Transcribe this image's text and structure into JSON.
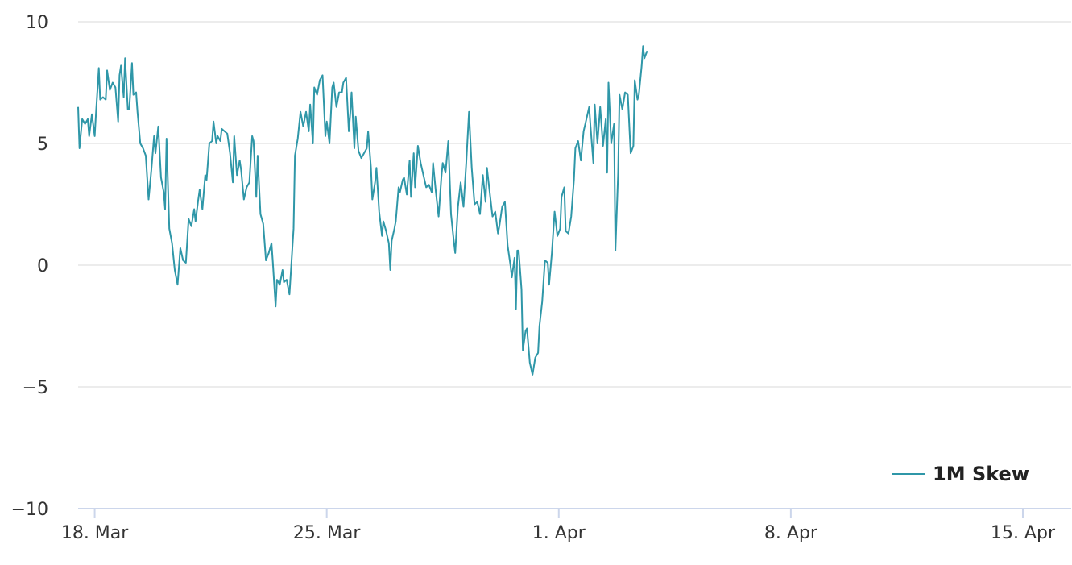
{
  "chart_data": {
    "type": "line",
    "title": "",
    "xlabel": "",
    "ylabel": "",
    "ylim": [
      -10,
      10
    ],
    "xlim": [
      "2024-03-17T12:00",
      "2024-04-16T04:00"
    ],
    "y_ticks": [
      -10,
      -5,
      0,
      5,
      10
    ],
    "y_tick_labels": [
      "−10",
      "−5",
      "0",
      "5",
      "10"
    ],
    "x_ticks": [
      {
        "date": "2024-03-18",
        "label": "18. Mar"
      },
      {
        "date": "2024-03-25",
        "label": "25. Mar"
      },
      {
        "date": "2024-04-01",
        "label": "1. Apr"
      },
      {
        "date": "2024-04-08",
        "label": "8. Apr"
      },
      {
        "date": "2024-04-15",
        "label": "15. Apr"
      }
    ],
    "grid": "horizontal",
    "legend_position": "bottom-right",
    "colors": {
      "series": "#2f97a8",
      "grid": "#e6e6e6",
      "axis": "#ccd6eb"
    },
    "series": [
      {
        "name": "1M Skew",
        "points": [
          [
            "2024-03-17T12:00",
            6.5
          ],
          [
            "2024-03-17T13:00",
            4.8
          ],
          [
            "2024-03-17T15:00",
            6.0
          ],
          [
            "2024-03-17T17:00",
            5.8
          ],
          [
            "2024-03-17T19:00",
            6.0
          ],
          [
            "2024-03-17T20:00",
            5.3
          ],
          [
            "2024-03-17T22:00",
            6.2
          ],
          [
            "2024-03-18T00:00",
            5.3
          ],
          [
            "2024-03-18T01:00",
            6.3
          ],
          [
            "2024-03-18T03:00",
            8.1
          ],
          [
            "2024-03-18T04:00",
            6.8
          ],
          [
            "2024-03-18T06:00",
            6.9
          ],
          [
            "2024-03-18T08:00",
            6.8
          ],
          [
            "2024-03-18T09:00",
            8.0
          ],
          [
            "2024-03-18T11:00",
            7.2
          ],
          [
            "2024-03-18T13:00",
            7.5
          ],
          [
            "2024-03-18T15:00",
            7.3
          ],
          [
            "2024-03-18T17:00",
            5.9
          ],
          [
            "2024-03-18T18:00",
            7.8
          ],
          [
            "2024-03-18T19:00",
            8.2
          ],
          [
            "2024-03-18T21:00",
            6.9
          ],
          [
            "2024-03-18T22:00",
            8.5
          ],
          [
            "2024-03-19T00:00",
            6.4
          ],
          [
            "2024-03-19T01:00",
            6.4
          ],
          [
            "2024-03-19T03:00",
            8.3
          ],
          [
            "2024-03-19T04:00",
            7.0
          ],
          [
            "2024-03-19T06:00",
            7.1
          ],
          [
            "2024-03-19T07:00",
            6.3
          ],
          [
            "2024-03-19T09:00",
            5.0
          ],
          [
            "2024-03-19T11:00",
            4.8
          ],
          [
            "2024-03-19T13:00",
            4.5
          ],
          [
            "2024-03-19T15:00",
            2.7
          ],
          [
            "2024-03-19T17:00",
            3.9
          ],
          [
            "2024-03-19T19:00",
            5.3
          ],
          [
            "2024-03-19T20:00",
            4.6
          ],
          [
            "2024-03-19T22:00",
            5.7
          ],
          [
            "2024-03-20T00:00",
            3.6
          ],
          [
            "2024-03-20T02:00",
            3.0
          ],
          [
            "2024-03-20T03:00",
            2.3
          ],
          [
            "2024-03-20T04:00",
            5.2
          ],
          [
            "2024-03-20T06:00",
            1.5
          ],
          [
            "2024-03-20T08:00",
            0.9
          ],
          [
            "2024-03-20T10:00",
            -0.2
          ],
          [
            "2024-03-20T12:00",
            -0.8
          ],
          [
            "2024-03-20T14:00",
            0.7
          ],
          [
            "2024-03-20T16:00",
            0.2
          ],
          [
            "2024-03-20T18:00",
            0.1
          ],
          [
            "2024-03-20T20:00",
            1.9
          ],
          [
            "2024-03-20T22:00",
            1.6
          ],
          [
            "2024-03-21T00:00",
            2.3
          ],
          [
            "2024-03-21T01:00",
            1.8
          ],
          [
            "2024-03-21T03:00",
            2.7
          ],
          [
            "2024-03-21T04:00",
            3.1
          ],
          [
            "2024-03-21T06:00",
            2.3
          ],
          [
            "2024-03-21T08:00",
            3.7
          ],
          [
            "2024-03-21T09:00",
            3.5
          ],
          [
            "2024-03-21T11:00",
            5.0
          ],
          [
            "2024-03-21T13:00",
            5.1
          ],
          [
            "2024-03-21T14:00",
            5.9
          ],
          [
            "2024-03-21T16:00",
            5.0
          ],
          [
            "2024-03-21T17:00",
            5.3
          ],
          [
            "2024-03-21T19:00",
            5.1
          ],
          [
            "2024-03-21T20:00",
            5.6
          ],
          [
            "2024-03-21T22:00",
            5.5
          ],
          [
            "2024-03-22T00:00",
            5.4
          ],
          [
            "2024-03-22T02:00",
            4.6
          ],
          [
            "2024-03-22T04:00",
            3.4
          ],
          [
            "2024-03-22T05:00",
            5.3
          ],
          [
            "2024-03-22T07:00",
            3.7
          ],
          [
            "2024-03-22T09:00",
            4.3
          ],
          [
            "2024-03-22T10:00",
            3.9
          ],
          [
            "2024-03-22T12:00",
            2.7
          ],
          [
            "2024-03-22T14:00",
            3.2
          ],
          [
            "2024-03-22T16:00",
            3.4
          ],
          [
            "2024-03-22T18:00",
            5.3
          ],
          [
            "2024-03-22T19:00",
            5.1
          ],
          [
            "2024-03-22T21:00",
            2.8
          ],
          [
            "2024-03-22T22:00",
            4.5
          ],
          [
            "2024-03-23T00:00",
            2.1
          ],
          [
            "2024-03-23T02:00",
            1.7
          ],
          [
            "2024-03-23T04:00",
            0.2
          ],
          [
            "2024-03-23T06:00",
            0.5
          ],
          [
            "2024-03-23T08:00",
            0.9
          ],
          [
            "2024-03-23T09:00",
            0.1
          ],
          [
            "2024-03-23T11:00",
            -1.7
          ],
          [
            "2024-03-23T12:00",
            -0.6
          ],
          [
            "2024-03-23T14:00",
            -0.8
          ],
          [
            "2024-03-23T16:00",
            -0.2
          ],
          [
            "2024-03-23T17:00",
            -0.7
          ],
          [
            "2024-03-23T19:00",
            -0.6
          ],
          [
            "2024-03-23T21:00",
            -1.2
          ],
          [
            "2024-03-24T00:00",
            1.5
          ],
          [
            "2024-03-24T01:00",
            4.5
          ],
          [
            "2024-03-24T03:00",
            5.2
          ],
          [
            "2024-03-24T05:00",
            6.3
          ],
          [
            "2024-03-24T07:00",
            5.7
          ],
          [
            "2024-03-24T09:00",
            6.3
          ],
          [
            "2024-03-24T11:00",
            5.5
          ],
          [
            "2024-03-24T12:00",
            6.6
          ],
          [
            "2024-03-24T14:00",
            5.0
          ],
          [
            "2024-03-24T15:00",
            7.3
          ],
          [
            "2024-03-24T17:00",
            7.0
          ],
          [
            "2024-03-24T19:00",
            7.6
          ],
          [
            "2024-03-24T21:00",
            7.8
          ],
          [
            "2024-03-24T23:00",
            5.3
          ],
          [
            "2024-03-25T00:00",
            5.9
          ],
          [
            "2024-03-25T02:00",
            5.0
          ],
          [
            "2024-03-25T04:00",
            7.3
          ],
          [
            "2024-03-25T05:00",
            7.5
          ],
          [
            "2024-03-25T07:00",
            6.5
          ],
          [
            "2024-03-25T09:00",
            7.1
          ],
          [
            "2024-03-25T11:00",
            7.1
          ],
          [
            "2024-03-25T12:00",
            7.5
          ],
          [
            "2024-03-25T14:00",
            7.7
          ],
          [
            "2024-03-25T16:00",
            5.5
          ],
          [
            "2024-03-25T17:00",
            6.2
          ],
          [
            "2024-03-25T18:00",
            7.1
          ],
          [
            "2024-03-25T20:00",
            4.8
          ],
          [
            "2024-03-25T21:00",
            6.1
          ],
          [
            "2024-03-25T23:00",
            4.7
          ],
          [
            "2024-03-26T01:00",
            4.4
          ],
          [
            "2024-03-26T03:00",
            4.6
          ],
          [
            "2024-03-26T05:00",
            4.8
          ],
          [
            "2024-03-26T06:00",
            5.5
          ],
          [
            "2024-03-26T08:00",
            4.0
          ],
          [
            "2024-03-26T09:00",
            2.7
          ],
          [
            "2024-03-26T11:00",
            3.4
          ],
          [
            "2024-03-26T12:00",
            4.0
          ],
          [
            "2024-03-26T14:00",
            2.2
          ],
          [
            "2024-03-26T16:00",
            1.2
          ],
          [
            "2024-03-26T17:00",
            1.8
          ],
          [
            "2024-03-26T19:00",
            1.4
          ],
          [
            "2024-03-26T21:00",
            0.9
          ],
          [
            "2024-03-26T22:00",
            -0.2
          ],
          [
            "2024-03-26T23:00",
            1.0
          ],
          [
            "2024-03-27T01:00",
            1.5
          ],
          [
            "2024-03-27T02:00",
            1.8
          ],
          [
            "2024-03-27T04:00",
            3.2
          ],
          [
            "2024-03-27T05:00",
            3.0
          ],
          [
            "2024-03-27T07:00",
            3.5
          ],
          [
            "2024-03-27T08:00",
            3.6
          ],
          [
            "2024-03-27T10:00",
            2.9
          ],
          [
            "2024-03-27T12:00",
            4.3
          ],
          [
            "2024-03-27T13:00",
            2.8
          ],
          [
            "2024-03-27T15:00",
            4.6
          ],
          [
            "2024-03-27T16:00",
            3.2
          ],
          [
            "2024-03-27T18:00",
            4.9
          ],
          [
            "2024-03-27T20:00",
            4.2
          ],
          [
            "2024-03-27T22:00",
            3.7
          ],
          [
            "2024-03-28T00:00",
            3.2
          ],
          [
            "2024-03-28T02:00",
            3.3
          ],
          [
            "2024-03-28T04:00",
            3.0
          ],
          [
            "2024-03-28T05:00",
            4.2
          ],
          [
            "2024-03-28T07:00",
            3.0
          ],
          [
            "2024-03-28T09:00",
            2.0
          ],
          [
            "2024-03-28T11:00",
            3.6
          ],
          [
            "2024-03-28T12:00",
            4.2
          ],
          [
            "2024-03-28T14:00",
            3.8
          ],
          [
            "2024-03-28T16:00",
            5.1
          ],
          [
            "2024-03-28T18:00",
            2.1
          ],
          [
            "2024-03-28T20:00",
            1.0
          ],
          [
            "2024-03-28T21:00",
            0.5
          ],
          [
            "2024-03-28T23:00",
            2.4
          ],
          [
            "2024-03-29T01:00",
            3.4
          ],
          [
            "2024-03-29T03:00",
            2.4
          ],
          [
            "2024-03-29T05:00",
            4.2
          ],
          [
            "2024-03-29T07:00",
            6.3
          ],
          [
            "2024-03-29T09:00",
            4.0
          ],
          [
            "2024-03-29T11:00",
            2.5
          ],
          [
            "2024-03-29T13:00",
            2.6
          ],
          [
            "2024-03-29T15:00",
            2.1
          ],
          [
            "2024-03-29T17:00",
            3.7
          ],
          [
            "2024-03-29T19:00",
            2.6
          ],
          [
            "2024-03-29T20:00",
            4.0
          ],
          [
            "2024-03-29T22:00",
            3.0
          ],
          [
            "2024-03-30T00:00",
            2.0
          ],
          [
            "2024-03-30T02:00",
            2.2
          ],
          [
            "2024-03-30T04:00",
            1.3
          ],
          [
            "2024-03-30T05:00",
            1.6
          ],
          [
            "2024-03-30T07:00",
            2.4
          ],
          [
            "2024-03-30T09:00",
            2.6
          ],
          [
            "2024-03-30T11:00",
            0.8
          ],
          [
            "2024-03-30T13:00",
            0.0
          ],
          [
            "2024-03-30T14:00",
            -0.5
          ],
          [
            "2024-03-30T16:00",
            0.3
          ],
          [
            "2024-03-30T17:00",
            -1.8
          ],
          [
            "2024-03-30T18:00",
            0.6
          ],
          [
            "2024-03-30T19:00",
            0.6
          ],
          [
            "2024-03-30T21:00",
            -1.0
          ],
          [
            "2024-03-30T22:00",
            -3.5
          ],
          [
            "2024-03-31T00:00",
            -2.7
          ],
          [
            "2024-03-31T01:00",
            -2.6
          ],
          [
            "2024-03-31T03:00",
            -4.0
          ],
          [
            "2024-03-31T05:00",
            -4.5
          ],
          [
            "2024-03-31T07:00",
            -3.8
          ],
          [
            "2024-03-31T09:00",
            -3.6
          ],
          [
            "2024-03-31T10:00",
            -2.5
          ],
          [
            "2024-03-31T12:00",
            -1.5
          ],
          [
            "2024-03-31T14:00",
            0.2
          ],
          [
            "2024-03-31T16:00",
            0.1
          ],
          [
            "2024-03-31T17:00",
            -0.8
          ],
          [
            "2024-03-31T19:00",
            0.5
          ],
          [
            "2024-03-31T21:00",
            2.2
          ],
          [
            "2024-03-31T23:00",
            1.2
          ],
          [
            "2024-04-01T01:00",
            1.5
          ],
          [
            "2024-04-01T02:00",
            2.8
          ],
          [
            "2024-04-01T04:00",
            3.2
          ],
          [
            "2024-04-01T05:00",
            1.4
          ],
          [
            "2024-04-01T07:00",
            1.3
          ],
          [
            "2024-04-01T09:00",
            2.0
          ],
          [
            "2024-04-01T11:00",
            3.5
          ],
          [
            "2024-04-01T12:00",
            4.8
          ],
          [
            "2024-04-01T14:00",
            5.1
          ],
          [
            "2024-04-01T16:00",
            4.3
          ],
          [
            "2024-04-01T18:00",
            5.5
          ],
          [
            "2024-04-01T20:00",
            6.0
          ],
          [
            "2024-04-01T22:00",
            6.5
          ],
          [
            "2024-04-01T23:00",
            5.7
          ],
          [
            "2024-04-02T01:00",
            4.2
          ],
          [
            "2024-04-02T02:00",
            6.6
          ],
          [
            "2024-04-02T04:00",
            5.0
          ],
          [
            "2024-04-02T06:00",
            6.5
          ],
          [
            "2024-04-02T08:00",
            4.9
          ],
          [
            "2024-04-02T10:00",
            6.0
          ],
          [
            "2024-04-02T11:00",
            3.8
          ],
          [
            "2024-04-02T12:00",
            7.5
          ],
          [
            "2024-04-02T14:00",
            5.0
          ],
          [
            "2024-04-02T16:00",
            5.8
          ],
          [
            "2024-04-02T17:00",
            0.6
          ],
          [
            "2024-04-02T19:00",
            3.8
          ],
          [
            "2024-04-02T20:00",
            7.0
          ],
          [
            "2024-04-02T22:00",
            6.4
          ],
          [
            "2024-04-03T00:00",
            7.1
          ],
          [
            "2024-04-03T02:00",
            7.0
          ],
          [
            "2024-04-03T04:00",
            4.6
          ],
          [
            "2024-04-03T06:00",
            4.9
          ],
          [
            "2024-04-03T07:00",
            7.6
          ],
          [
            "2024-04-03T09:00",
            6.8
          ],
          [
            "2024-04-03T10:00",
            7.0
          ],
          [
            "2024-04-03T12:00",
            8.2
          ],
          [
            "2024-04-03T13:00",
            9.0
          ],
          [
            "2024-04-03T14:00",
            8.5
          ],
          [
            "2024-04-03T16:00",
            8.8
          ]
        ]
      }
    ]
  }
}
